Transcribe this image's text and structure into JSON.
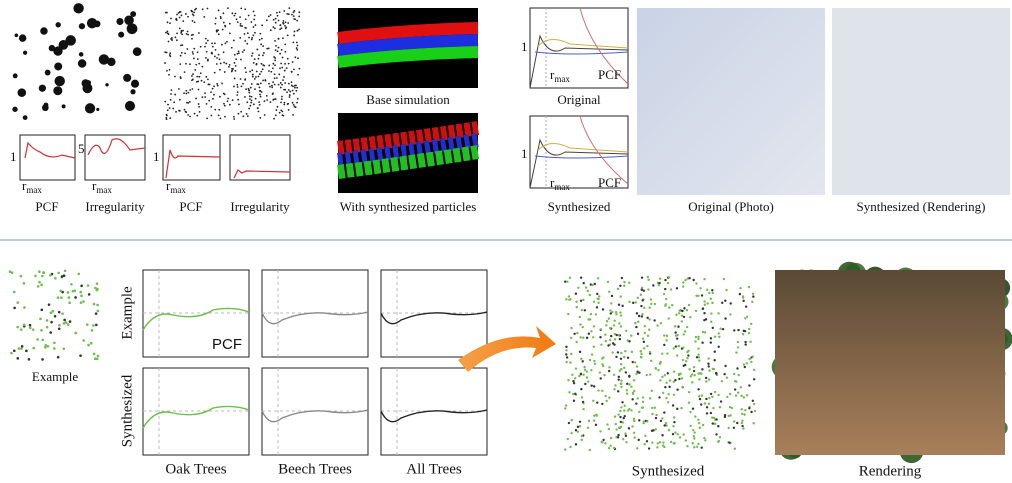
{
  "figure_top": {
    "particles_a": {
      "pcf": {
        "tick": "1",
        "r": "r",
        "sub": "max"
      },
      "pcf_caption": "PCF",
      "irregularity": {
        "tick": "5",
        "r": "r",
        "sub": "max"
      },
      "irregularity_caption": "Irregularity"
    },
    "particles_b": {
      "pcf": {
        "tick": "1",
        "r": "r",
        "sub": "max"
      },
      "pcf_caption": "PCF",
      "irregularity_caption": "Irregularity"
    },
    "smoke": {
      "base": "Base simulation",
      "synthesized": "With synthesized particles"
    },
    "candy": {
      "original_plot": {
        "tick": "1",
        "r": "r",
        "sub": "max",
        "label": "PCF",
        "caption": "Original"
      },
      "synthesized_plot": {
        "tick": "1",
        "r": "r",
        "sub": "max",
        "label": "PCF",
        "caption": "Synthesized"
      },
      "photo": "Original (Photo)",
      "rendering": "Synthesized (Rendering)"
    }
  },
  "figure_bottom": {
    "example": "Example",
    "rows": [
      "Example",
      "Synthesized"
    ],
    "pcf_label": "PCF",
    "columns": [
      "Oak Trees",
      "Beech Trees",
      "All Trees"
    ],
    "synthesized": "Synthesized",
    "rendering": "Rendering"
  }
}
